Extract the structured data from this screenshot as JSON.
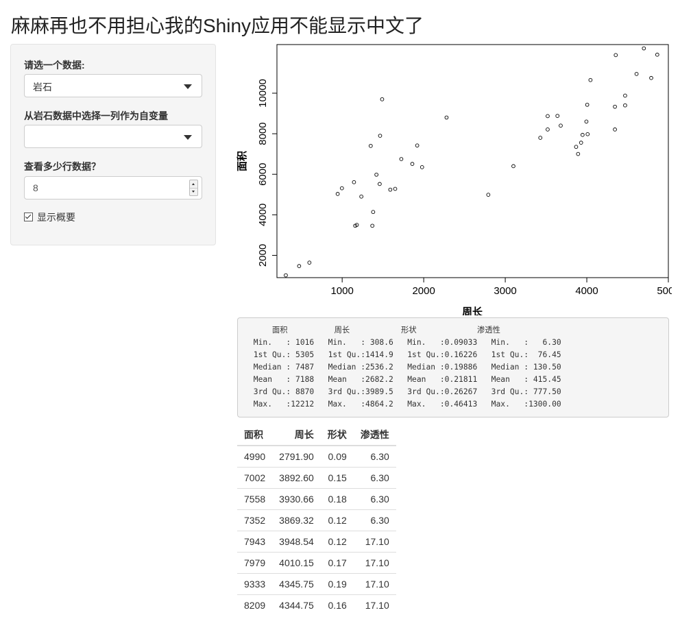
{
  "page_title": "麻麻再也不用担心我的Shiny应用不能显示中文了",
  "sidebar": {
    "dataset_label": "请选一个数据:",
    "dataset_value": "岩石",
    "variable_label": "从岩石数据中选择一列作为自变量",
    "variable_value": "",
    "rows_label": "查看多少行数据？",
    "rows_value": "8",
    "summary_checkbox_label": "显示概要",
    "summary_checked": true
  },
  "chart_data": {
    "type": "scatter",
    "title": "",
    "xlabel": "周长",
    "ylabel": "面积",
    "xlim": [
      200,
      5000
    ],
    "ylim": [
      900,
      12400
    ],
    "xticks": [
      1000,
      2000,
      3000,
      4000,
      5000
    ],
    "xtick_labels": [
      "1000",
      "2000",
      "3000",
      "4000",
      "5000"
    ],
    "yticks": [
      2000,
      4000,
      6000,
      8000,
      10000
    ],
    "ytick_labels": [
      "2000",
      "4000",
      "6000",
      "8000",
      "10000"
    ],
    "grid": false,
    "series": [
      {
        "points": [
          [
            309,
            1016
          ],
          [
            472,
            1470
          ],
          [
            598,
            1640
          ],
          [
            945,
            5030
          ],
          [
            997,
            5310
          ],
          [
            1145,
            5610
          ],
          [
            1160,
            3460
          ],
          [
            1180,
            3500
          ],
          [
            1235,
            4900
          ],
          [
            1350,
            7400
          ],
          [
            1370,
            3460
          ],
          [
            1380,
            4140
          ],
          [
            1420,
            5980
          ],
          [
            1460,
            5520
          ],
          [
            1465,
            7900
          ],
          [
            1490,
            9700
          ],
          [
            1590,
            5240
          ],
          [
            1650,
            5280
          ],
          [
            1725,
            6750
          ],
          [
            1860,
            6510
          ],
          [
            1920,
            7420
          ],
          [
            1980,
            6350
          ],
          [
            2280,
            8800
          ],
          [
            2792,
            4990
          ],
          [
            3100,
            6400
          ],
          [
            3430,
            7800
          ],
          [
            3520,
            8870
          ],
          [
            3520,
            8210
          ],
          [
            3640,
            8880
          ],
          [
            3680,
            8400
          ],
          [
            3869,
            7352
          ],
          [
            3893,
            7002
          ],
          [
            3930,
            7558
          ],
          [
            3948,
            7943
          ],
          [
            3995,
            8600
          ],
          [
            4005,
            9430
          ],
          [
            4010,
            7979
          ],
          [
            4045,
            10650
          ],
          [
            4345,
            9333
          ],
          [
            4345,
            8209
          ],
          [
            4355,
            11880
          ],
          [
            4470,
            9880
          ],
          [
            4470,
            9400
          ],
          [
            4610,
            10950
          ],
          [
            4700,
            12212
          ],
          [
            4790,
            10750
          ],
          [
            4864,
            11900
          ]
        ]
      }
    ]
  },
  "summary": {
    "text": "     面积          周长           形状             渗透性     \n Min.   : 1016   Min.   : 308.6   Min.   :0.09033   Min.   :   6.30  \n 1st Qu.: 5305   1st Qu.:1414.9   1st Qu.:0.16226   1st Qu.:  76.45  \n Median : 7487   Median :2536.2   Median :0.19886   Median : 130.50  \n Mean   : 7188   Mean   :2682.2   Mean   :0.21811   Mean   : 415.45  \n 3rd Qu.: 8870   3rd Qu.:3989.5   3rd Qu.:0.26267   3rd Qu.: 777.50  \n Max.   :12212   Max.   :4864.2   Max.   :0.46413   Max.   :1300.00  "
  },
  "table": {
    "columns": [
      "面积",
      "周长",
      "形状",
      "渗透性"
    ],
    "rows": [
      [
        "4990",
        "2791.90",
        "0.09",
        "6.30"
      ],
      [
        "7002",
        "3892.60",
        "0.15",
        "6.30"
      ],
      [
        "7558",
        "3930.66",
        "0.18",
        "6.30"
      ],
      [
        "7352",
        "3869.32",
        "0.12",
        "6.30"
      ],
      [
        "7943",
        "3948.54",
        "0.12",
        "17.10"
      ],
      [
        "7979",
        "4010.15",
        "0.17",
        "17.10"
      ],
      [
        "9333",
        "4345.75",
        "0.19",
        "17.10"
      ],
      [
        "8209",
        "4344.75",
        "0.16",
        "17.10"
      ]
    ]
  }
}
